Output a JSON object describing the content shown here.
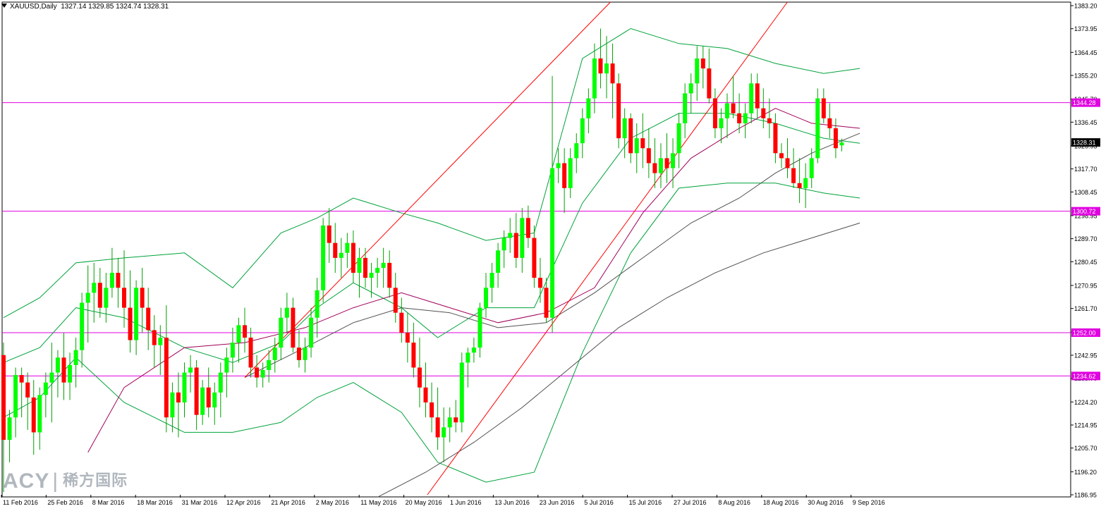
{
  "header": {
    "symbol_tf": "XAUUSD,Daily",
    "ohlc": "1327.14 1329.85 1324.74 1328.31"
  },
  "watermark": {
    "brand": "ACY",
    "separator": "|",
    "chinese": "稀方国际"
  },
  "colors": {
    "bull": "#00ff00",
    "bear": "#ff0000",
    "wick": "#00a000",
    "bollinger": "#00a23a",
    "ma_purple": "#a0005a",
    "ma_gray": "#505050",
    "trendline": "#ff0000",
    "hline": "#e000e0",
    "price_tag_bg": "#000000"
  },
  "chart_data": {
    "type": "candlestick",
    "symbol": "XAUUSD",
    "timeframe": "Daily",
    "ylim": [
      1186.95,
      1383.2
    ],
    "y_ticks": [
      "1383.20",
      "1373.95",
      "1364.45",
      "1355.20",
      "1345.70",
      "1336.45",
      "1326.95",
      "1317.70",
      "1308.45",
      "1298.95",
      "1289.70",
      "1280.45",
      "1270.95",
      "1261.70",
      "1252.20",
      "1242.95",
      "1233.70",
      "1224.20",
      "1214.95",
      "1205.70",
      "1196.20",
      "1186.95"
    ],
    "x_labels": [
      "11 Feb 2016",
      "25 Feb 2016",
      "8 Mar 2016",
      "18 Mar 2016",
      "31 Mar 2016",
      "12 Apr 2016",
      "21 Apr 2016",
      "2 May 2016",
      "11 May 2016",
      "20 May 2016",
      "1 Jun 2016",
      "13 Jun 2016",
      "23 Jun 2016",
      "5 Jul 2016",
      "15 Jul 2016",
      "27 Jul 2016",
      "8 Aug 2016",
      "18 Aug 2016",
      "30 Aug 2016",
      "9 Sep 2016"
    ],
    "horizontal_levels": [
      {
        "price": 1344.28,
        "label": "1344.28"
      },
      {
        "price": 1300.72,
        "label": "1300.72"
      },
      {
        "price": 1252.0,
        "label": "1252.00"
      },
      {
        "price": 1234.62,
        "label": "1234.62"
      }
    ],
    "current_price": {
      "price": 1328.31,
      "label": "1328.31"
    },
    "ohlc": [
      [
        1243,
        1248,
        1188,
        1209
      ],
      [
        1209,
        1221,
        1200,
        1218
      ],
      [
        1218,
        1238,
        1210,
        1235
      ],
      [
        1235,
        1238,
        1218,
        1232
      ],
      [
        1232,
        1236,
        1213,
        1226
      ],
      [
        1226,
        1233,
        1203,
        1212
      ],
      [
        1212,
        1230,
        1205,
        1227
      ],
      [
        1227,
        1236,
        1218,
        1232
      ],
      [
        1232,
        1248,
        1216,
        1236
      ],
      [
        1236,
        1245,
        1226,
        1242
      ],
      [
        1242,
        1252,
        1225,
        1232
      ],
      [
        1232,
        1244,
        1225,
        1239
      ],
      [
        1239,
        1250,
        1230,
        1245
      ],
      [
        1245,
        1268,
        1238,
        1264
      ],
      [
        1264,
        1279,
        1248,
        1268
      ],
      [
        1268,
        1280,
        1256,
        1272
      ],
      [
        1272,
        1278,
        1258,
        1262
      ],
      [
        1262,
        1276,
        1256,
        1270
      ],
      [
        1270,
        1286,
        1266,
        1276
      ],
      [
        1276,
        1282,
        1262,
        1270
      ],
      [
        1270,
        1285,
        1254,
        1262
      ],
      [
        1262,
        1277,
        1244,
        1249
      ],
      [
        1249,
        1273,
        1243,
        1270
      ],
      [
        1270,
        1278,
        1252,
        1262
      ],
      [
        1262,
        1270,
        1245,
        1253
      ],
      [
        1253,
        1259,
        1238,
        1247
      ],
      [
        1247,
        1255,
        1235,
        1250
      ],
      [
        1250,
        1263,
        1212,
        1218
      ],
      [
        1218,
        1232,
        1212,
        1228
      ],
      [
        1228,
        1236,
        1210,
        1224
      ],
      [
        1224,
        1240,
        1218,
        1236
      ],
      [
        1236,
        1243,
        1228,
        1238
      ],
      [
        1238,
        1241,
        1213,
        1219
      ],
      [
        1219,
        1233,
        1215,
        1230
      ],
      [
        1230,
        1238,
        1218,
        1222
      ],
      [
        1222,
        1232,
        1215,
        1228
      ],
      [
        1228,
        1240,
        1218,
        1236
      ],
      [
        1236,
        1246,
        1226,
        1242
      ],
      [
        1242,
        1254,
        1236,
        1248
      ],
      [
        1248,
        1258,
        1240,
        1255
      ],
      [
        1255,
        1262,
        1244,
        1250
      ],
      [
        1250,
        1254,
        1234,
        1238
      ],
      [
        1238,
        1243,
        1230,
        1234
      ],
      [
        1234,
        1240,
        1230,
        1237
      ],
      [
        1237,
        1245,
        1232,
        1241
      ],
      [
        1241,
        1250,
        1236,
        1246
      ],
      [
        1246,
        1262,
        1241,
        1258
      ],
      [
        1258,
        1268,
        1252,
        1262
      ],
      [
        1262,
        1266,
        1244,
        1246
      ],
      [
        1246,
        1253,
        1238,
        1241
      ],
      [
        1241,
        1250,
        1236,
        1246
      ],
      [
        1246,
        1262,
        1242,
        1258
      ],
      [
        1258,
        1274,
        1250,
        1269
      ],
      [
        1269,
        1298,
        1264,
        1295
      ],
      [
        1295,
        1302,
        1280,
        1288
      ],
      [
        1288,
        1296,
        1276,
        1282
      ],
      [
        1282,
        1290,
        1274,
        1284
      ],
      [
        1284,
        1292,
        1278,
        1288
      ],
      [
        1288,
        1293,
        1272,
        1276
      ],
      [
        1276,
        1286,
        1266,
        1282
      ],
      [
        1282,
        1286,
        1270,
        1274
      ],
      [
        1274,
        1280,
        1266,
        1276
      ],
      [
        1276,
        1282,
        1270,
        1278
      ],
      [
        1278,
        1286,
        1270,
        1280
      ],
      [
        1280,
        1285,
        1266,
        1270
      ],
      [
        1270,
        1276,
        1256,
        1260
      ],
      [
        1260,
        1266,
        1248,
        1252
      ],
      [
        1252,
        1260,
        1240,
        1248
      ],
      [
        1248,
        1256,
        1234,
        1238
      ],
      [
        1238,
        1250,
        1222,
        1230
      ],
      [
        1230,
        1240,
        1218,
        1224
      ],
      [
        1224,
        1232,
        1212,
        1218
      ],
      [
        1218,
        1230,
        1205,
        1210
      ],
      [
        1210,
        1222,
        1200,
        1214
      ],
      [
        1214,
        1222,
        1208,
        1218
      ],
      [
        1218,
        1225,
        1212,
        1216
      ],
      [
        1216,
        1244,
        1212,
        1240
      ],
      [
        1240,
        1246,
        1230,
        1244
      ],
      [
        1244,
        1250,
        1240,
        1246
      ],
      [
        1246,
        1264,
        1242,
        1262
      ],
      [
        1262,
        1276,
        1258,
        1270
      ],
      [
        1270,
        1280,
        1264,
        1276
      ],
      [
        1276,
        1288,
        1270,
        1285
      ],
      [
        1285,
        1293,
        1278,
        1290
      ],
      [
        1290,
        1298,
        1284,
        1292
      ],
      [
        1292,
        1300,
        1278,
        1282
      ],
      [
        1282,
        1302,
        1276,
        1298
      ],
      [
        1298,
        1303,
        1286,
        1290
      ],
      [
        1290,
        1295,
        1270,
        1274
      ],
      [
        1274,
        1282,
        1264,
        1270
      ],
      [
        1270,
        1274,
        1256,
        1258
      ],
      [
        1258,
        1355,
        1252,
        1318
      ],
      [
        1318,
        1326,
        1312,
        1320
      ],
      [
        1320,
        1326,
        1300,
        1310
      ],
      [
        1310,
        1326,
        1306,
        1322
      ],
      [
        1322,
        1332,
        1316,
        1328
      ],
      [
        1328,
        1342,
        1322,
        1338
      ],
      [
        1338,
        1350,
        1332,
        1346
      ],
      [
        1346,
        1368,
        1340,
        1362
      ],
      [
        1362,
        1374,
        1350,
        1356
      ],
      [
        1356,
        1371,
        1346,
        1360
      ],
      [
        1360,
        1368,
        1338,
        1352
      ],
      [
        1352,
        1356,
        1326,
        1330
      ],
      [
        1330,
        1342,
        1322,
        1338
      ],
      [
        1338,
        1340,
        1320,
        1324
      ],
      [
        1324,
        1336,
        1316,
        1330
      ],
      [
        1330,
        1340,
        1318,
        1326
      ],
      [
        1326,
        1334,
        1314,
        1320
      ],
      [
        1320,
        1330,
        1310,
        1316
      ],
      [
        1316,
        1328,
        1310,
        1322
      ],
      [
        1322,
        1332,
        1312,
        1318
      ],
      [
        1318,
        1330,
        1310,
        1324
      ],
      [
        1324,
        1340,
        1318,
        1336
      ],
      [
        1336,
        1352,
        1330,
        1348
      ],
      [
        1348,
        1356,
        1340,
        1352
      ],
      [
        1352,
        1367,
        1345,
        1362
      ],
      [
        1362,
        1367,
        1350,
        1358
      ],
      [
        1358,
        1366,
        1344,
        1346
      ],
      [
        1346,
        1350,
        1330,
        1334
      ],
      [
        1334,
        1342,
        1328,
        1338
      ],
      [
        1338,
        1348,
        1330,
        1344
      ],
      [
        1344,
        1355,
        1338,
        1340
      ],
      [
        1340,
        1348,
        1332,
        1336
      ],
      [
        1336,
        1344,
        1330,
        1340
      ],
      [
        1340,
        1356,
        1336,
        1352
      ],
      [
        1352,
        1356,
        1338,
        1342
      ],
      [
        1342,
        1350,
        1334,
        1338
      ],
      [
        1338,
        1346,
        1330,
        1336
      ],
      [
        1336,
        1340,
        1320,
        1324
      ],
      [
        1324,
        1328,
        1318,
        1322
      ],
      [
        1322,
        1330,
        1314,
        1318
      ],
      [
        1318,
        1326,
        1310,
        1312
      ],
      [
        1312,
        1322,
        1304,
        1310
      ],
      [
        1310,
        1320,
        1302,
        1314
      ],
      [
        1314,
        1326,
        1310,
        1322
      ],
      [
        1322,
        1350,
        1320,
        1346
      ],
      [
        1346,
        1350,
        1336,
        1338
      ],
      [
        1338,
        1344,
        1330,
        1334
      ],
      [
        1334,
        1338,
        1322,
        1326
      ],
      [
        1327.14,
        1329.85,
        1324.74,
        1328.31
      ]
    ],
    "bollinger_upper": [
      [
        0,
        1258
      ],
      [
        6,
        1266
      ],
      [
        12,
        1280
      ],
      [
        20,
        1282
      ],
      [
        30,
        1284
      ],
      [
        38,
        1270
      ],
      [
        46,
        1292
      ],
      [
        52,
        1298
      ],
      [
        58,
        1306
      ],
      [
        66,
        1300
      ],
      [
        72,
        1296
      ],
      [
        80,
        1289
      ],
      [
        88,
        1292
      ],
      [
        96,
        1362
      ],
      [
        104,
        1374
      ],
      [
        112,
        1368
      ],
      [
        120,
        1366
      ],
      [
        128,
        1360
      ],
      [
        136,
        1356
      ],
      [
        142,
        1358
      ]
    ],
    "bollinger_mid": [
      [
        0,
        1240
      ],
      [
        6,
        1246
      ],
      [
        12,
        1262
      ],
      [
        20,
        1258
      ],
      [
        30,
        1246
      ],
      [
        38,
        1240
      ],
      [
        46,
        1248
      ],
      [
        52,
        1262
      ],
      [
        58,
        1272
      ],
      [
        66,
        1262
      ],
      [
        72,
        1250
      ],
      [
        80,
        1262
      ],
      [
        88,
        1262
      ],
      [
        96,
        1304
      ],
      [
        104,
        1330
      ],
      [
        112,
        1340
      ],
      [
        120,
        1340
      ],
      [
        128,
        1336
      ],
      [
        136,
        1330
      ],
      [
        142,
        1328
      ]
    ],
    "bollinger_lower": [
      [
        0,
        1218
      ],
      [
        6,
        1226
      ],
      [
        12,
        1242
      ],
      [
        20,
        1224
      ],
      [
        30,
        1212
      ],
      [
        38,
        1212
      ],
      [
        46,
        1216
      ],
      [
        52,
        1226
      ],
      [
        58,
        1232
      ],
      [
        66,
        1220
      ],
      [
        72,
        1200
      ],
      [
        80,
        1192
      ],
      [
        88,
        1196
      ],
      [
        96,
        1244
      ],
      [
        104,
        1284
      ],
      [
        112,
        1310
      ],
      [
        120,
        1312
      ],
      [
        128,
        1312
      ],
      [
        136,
        1308
      ],
      [
        142,
        1306
      ]
    ],
    "ma_purple": [
      [
        14,
        1204
      ],
      [
        20,
        1230
      ],
      [
        30,
        1246
      ],
      [
        40,
        1248
      ],
      [
        50,
        1254
      ],
      [
        58,
        1262
      ],
      [
        66,
        1268
      ],
      [
        74,
        1262
      ],
      [
        82,
        1256
      ],
      [
        90,
        1260
      ],
      [
        98,
        1270
      ],
      [
        106,
        1300
      ],
      [
        114,
        1322
      ],
      [
        122,
        1334
      ],
      [
        128,
        1342
      ],
      [
        134,
        1336
      ],
      [
        142,
        1334
      ]
    ],
    "ma_gray_mid": [
      [
        40,
        1234
      ],
      [
        50,
        1246
      ],
      [
        58,
        1256
      ],
      [
        66,
        1262
      ],
      [
        74,
        1260
      ],
      [
        82,
        1254
      ],
      [
        90,
        1256
      ],
      [
        98,
        1268
      ],
      [
        106,
        1282
      ],
      [
        114,
        1296
      ],
      [
        122,
        1306
      ],
      [
        128,
        1316
      ],
      [
        134,
        1324
      ],
      [
        142,
        1332
      ]
    ],
    "ma_gray_long": [
      [
        62,
        1186
      ],
      [
        70,
        1196
      ],
      [
        78,
        1208
      ],
      [
        86,
        1222
      ],
      [
        94,
        1238
      ],
      [
        102,
        1254
      ],
      [
        110,
        1266
      ],
      [
        118,
        1276
      ],
      [
        126,
        1284
      ],
      [
        134,
        1290
      ],
      [
        142,
        1296
      ]
    ],
    "trendlines": [
      {
        "from": [
          40,
          1234
        ],
        "to": [
          102,
          1388
        ]
      },
      {
        "from": [
          70,
          1186
        ],
        "to": [
          131,
          1388
        ]
      }
    ]
  }
}
